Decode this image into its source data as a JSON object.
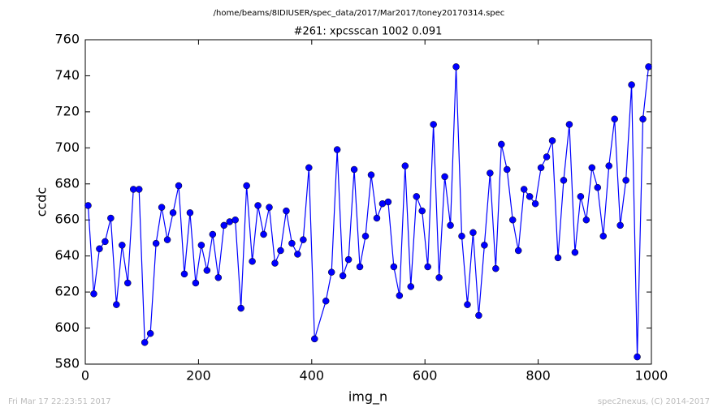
{
  "chart_data": {
    "type": "line",
    "suptitle": "/home/beams/8IDIUSER/spec_data/2017/Mar2017/toney20170314.spec",
    "title": "#261: xpcsscan 1002 0.091",
    "x_label": "img_n",
    "y_label": "ccdc",
    "footer_left": "Fri Mar 17 22:23:51 2017",
    "footer_right": "spec2nexus, (C) 2014-2017",
    "x": [
      5,
      15,
      25,
      35,
      45,
      55,
      65,
      75,
      85,
      95,
      105,
      115,
      125,
      135,
      145,
      155,
      165,
      175,
      185,
      195,
      205,
      215,
      225,
      235,
      245,
      255,
      265,
      275,
      285,
      295,
      305,
      315,
      325,
      335,
      345,
      355,
      365,
      375,
      385,
      395,
      405,
      425,
      435,
      445,
      455,
      465,
      475,
      485,
      495,
      505,
      515,
      525,
      535,
      545,
      555,
      565,
      575,
      585,
      595,
      605,
      615,
      625,
      635,
      645,
      655,
      665,
      675,
      685,
      695,
      705,
      715,
      725,
      735,
      745,
      755,
      765,
      775,
      785,
      795,
      805,
      815,
      825,
      835,
      845,
      855,
      865,
      875,
      885,
      895,
      905,
      915,
      925,
      935,
      945,
      955,
      965,
      975,
      985,
      995
    ],
    "series": [
      {
        "name": "ccdc",
        "color": "#0000ff",
        "values": [
          668,
          619,
          644,
          648,
          661,
          613,
          646,
          625,
          677,
          677,
          592,
          597,
          647,
          667,
          649,
          664,
          679,
          630,
          664,
          625,
          646,
          632,
          652,
          628,
          657,
          659,
          660,
          611,
          679,
          637,
          668,
          652,
          667,
          636,
          643,
          665,
          647,
          641,
          649,
          689,
          594,
          615,
          631,
          699,
          629,
          638,
          688,
          634,
          651,
          685,
          661,
          669,
          670,
          634,
          618,
          690,
          623,
          673,
          665,
          634,
          713,
          628,
          684,
          657,
          745,
          651,
          613,
          653,
          607,
          646,
          686,
          633,
          702,
          688,
          660,
          643,
          677,
          673,
          669,
          689,
          695,
          704,
          639,
          682,
          713,
          642,
          673,
          660,
          689,
          678,
          651,
          690,
          716,
          657,
          682,
          735,
          584,
          716,
          745
        ]
      }
    ],
    "xlim": [
      0,
      1000
    ],
    "xticks": [
      0,
      200,
      400,
      600,
      800,
      1000
    ],
    "ylim": [
      580,
      760
    ],
    "yticks": [
      580,
      600,
      620,
      640,
      660,
      680,
      700,
      720,
      740,
      760
    ]
  }
}
